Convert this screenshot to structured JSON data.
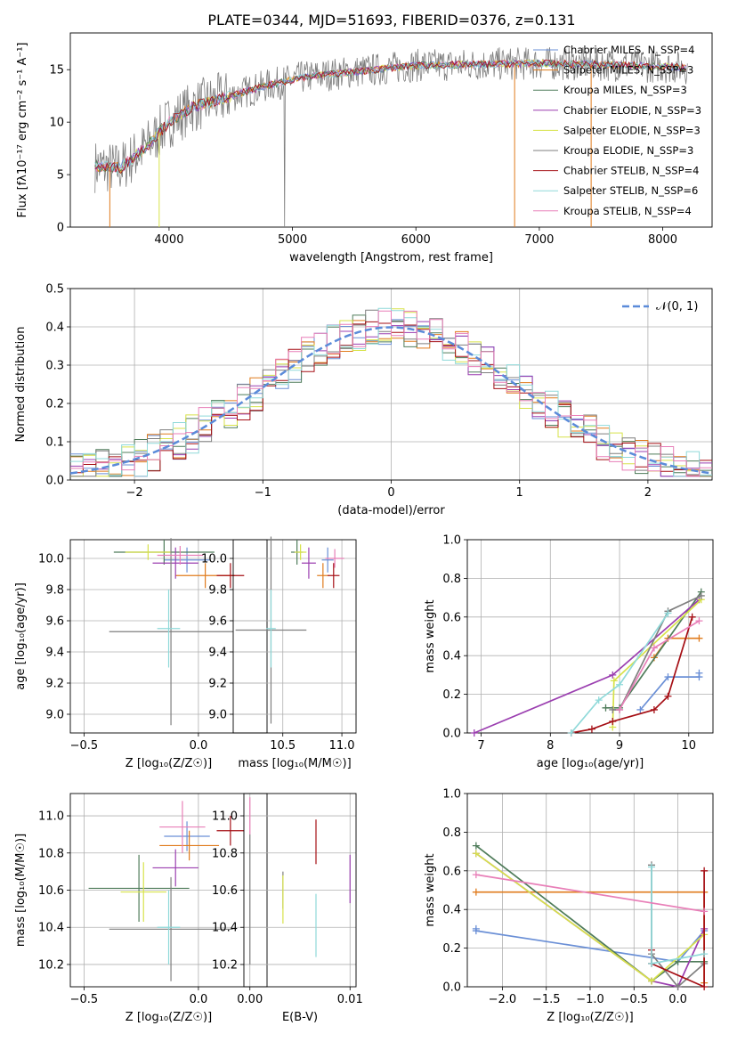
{
  "title": "PLATE=0344, MJD=51693, FIBERID=0376, z=0.131",
  "colors": [
    "#6a8fd6",
    "#e07b1c",
    "#4f7c5a",
    "#9b3fb0",
    "#d7e24a",
    "#7f7f7f",
    "#a50f15",
    "#8fd9d9",
    "#e87fb8"
  ],
  "chart_data": [
    {
      "type": "line",
      "name": "spectrum",
      "xlabel": "wavelength [Angstrom, rest frame]",
      "ylabel": "Flux [fλ10⁻¹⁷ erg cm⁻² s⁻¹ A⁻¹]",
      "xlim": [
        3200,
        8400
      ],
      "ylim": [
        0,
        18.5
      ],
      "xticks": [
        "4000",
        "5000",
        "6000",
        "7000",
        "8000"
      ],
      "yticks": [
        "0",
        "5",
        "10",
        "15"
      ],
      "legend": [
        "Chabrier MILES, N_SSP=4",
        "Salpeter MILES, N_SSP=3",
        "Kroupa MILES, N_SSP=3",
        "Chabrier ELODIE, N_SSP=3",
        "Salpeter ELODIE, N_SSP=3",
        "Kroupa ELODIE, N_SSP=3",
        "Chabrier STELIB, N_SSP=4",
        "Salpeter STELIB, N_SSP=6",
        "Kroupa STELIB, N_SSP=4"
      ],
      "legend_placement": "upper-right",
      "continuum_x": [
        3400,
        3600,
        3800,
        4000,
        4200,
        4500,
        4800,
        5100,
        5500,
        6000,
        6500,
        7000,
        7500,
        8000,
        8200
      ],
      "continuum_y": [
        5.8,
        5.6,
        7.5,
        10.0,
        11.5,
        12.5,
        13.5,
        14.3,
        14.8,
        15.4,
        15.5,
        15.6,
        15.5,
        15.3,
        15.2
      ],
      "grid": false
    },
    {
      "type": "histogram",
      "name": "residuals",
      "xlabel": "(data-model)/error",
      "ylabel": "Normed distribution",
      "xlim": [
        -2.5,
        2.5
      ],
      "ylim": [
        0,
        0.5
      ],
      "xticks": [
        "−2",
        "−1",
        "0",
        "1",
        "2"
      ],
      "yticks": [
        "0.0",
        "0.1",
        "0.2",
        "0.3",
        "0.4",
        "0.5"
      ],
      "legend": [
        "𝒩(0, 1)"
      ],
      "legend_placement": "upper-right",
      "bin_width": 0.1,
      "grid": true
    },
    {
      "type": "scatter",
      "name": "Z vs age",
      "xlabel": "Z [log₁₀(Z/Z☉)]",
      "ylabel": "age  [log₁₀(age/yr)]",
      "xlim": [
        -0.56,
        0.3
      ],
      "ylim": [
        8.88,
        10.12
      ],
      "xticks": [
        "−0.5",
        "0.0"
      ],
      "yticks": [
        "9.0",
        "9.2",
        "9.4",
        "9.6",
        "9.8",
        "10.0"
      ],
      "points": [
        {
          "x": -0.05,
          "y": 9.99,
          "xe": 0.1,
          "ye": 0.08,
          "c": 0
        },
        {
          "x": 0.03,
          "y": 9.89,
          "xe": 0.13,
          "ye": 0.08,
          "c": 1
        },
        {
          "x": -0.15,
          "y": 10.04,
          "xe": 0.22,
          "ye": 0.08,
          "c": 2
        },
        {
          "x": -0.1,
          "y": 9.97,
          "xe": 0.1,
          "ye": 0.1,
          "c": 3
        },
        {
          "x": -0.22,
          "y": 10.04,
          "xe": 0.1,
          "ye": 0.05,
          "c": 4
        },
        {
          "x": -0.12,
          "y": 9.53,
          "xe": 0.27,
          "ye": 0.6,
          "c": 5
        },
        {
          "x": 0.14,
          "y": 9.89,
          "xe": 0.06,
          "ye": 0.08,
          "c": 6
        },
        {
          "x": -0.13,
          "y": 9.55,
          "xe": 0.05,
          "ye": 0.25,
          "c": 7
        },
        {
          "x": -0.08,
          "y": 10.02,
          "xe": 0.1,
          "ye": 0.06,
          "c": 8
        }
      ],
      "grid": true
    },
    {
      "type": "scatter",
      "name": "mass vs age",
      "xlabel": "mass [log₁₀(M/M☉)]",
      "ylabel": "",
      "xlim": [
        10.08,
        11.12
      ],
      "ylim": [
        8.88,
        10.12
      ],
      "xticks": [
        "10.5",
        "11.0"
      ],
      "yticks": [
        "9.0",
        "9.2",
        "9.4",
        "9.6",
        "9.8",
        "10.0"
      ],
      "points": [
        {
          "x": 10.88,
          "y": 9.99,
          "xe": 0.05,
          "ye": 0.08,
          "c": 0
        },
        {
          "x": 10.84,
          "y": 9.89,
          "xe": 0.05,
          "ye": 0.08,
          "c": 1
        },
        {
          "x": 10.62,
          "y": 10.04,
          "xe": 0.05,
          "ye": 0.08,
          "c": 2
        },
        {
          "x": 10.72,
          "y": 9.97,
          "xe": 0.06,
          "ye": 0.1,
          "c": 3
        },
        {
          "x": 10.65,
          "y": 10.04,
          "xe": 0.05,
          "ye": 0.05,
          "c": 4
        },
        {
          "x": 10.4,
          "y": 9.54,
          "xe": 0.3,
          "ye": 0.6,
          "c": 5
        },
        {
          "x": 10.93,
          "y": 9.89,
          "xe": 0.05,
          "ye": 0.08,
          "c": 6
        },
        {
          "x": 10.4,
          "y": 9.55,
          "xe": 0.04,
          "ye": 0.25,
          "c": 7
        },
        {
          "x": 10.94,
          "y": 10.0,
          "xe": 0.08,
          "ye": 0.06,
          "c": 8
        }
      ],
      "grid": true
    },
    {
      "type": "line",
      "name": "age mass weight",
      "xlabel": "age  [log₁₀(age/yr)]",
      "ylabel": "mass weight",
      "xlim": [
        6.8,
        10.35
      ],
      "ylim": [
        0,
        1.0
      ],
      "xticks": [
        "7",
        "8",
        "9",
        "10"
      ],
      "yticks": [
        "0.0",
        "0.2",
        "0.4",
        "0.6",
        "0.8",
        "1.0"
      ],
      "series": [
        {
          "c": 0,
          "x": [
            9.3,
            9.7,
            10.15,
            10.15
          ],
          "y": [
            0.12,
            0.29,
            0.29,
            0.31
          ]
        },
        {
          "c": 1,
          "x": [
            9.5,
            9.7,
            10.15
          ],
          "y": [
            0.39,
            0.49,
            0.49
          ]
        },
        {
          "c": 2,
          "x": [
            8.8,
            9.0,
            10.18
          ],
          "y": [
            0.13,
            0.13,
            0.73
          ]
        },
        {
          "c": 3,
          "x": [
            6.9,
            8.9,
            10.15
          ],
          "y": [
            0.0,
            0.3,
            0.69
          ]
        },
        {
          "c": 4,
          "x": [
            8.9,
            8.92,
            10.18
          ],
          "y": [
            0.03,
            0.27,
            0.69
          ]
        },
        {
          "c": 5,
          "x": [
            8.9,
            9.0,
            9.7,
            10.18
          ],
          "y": [
            0.12,
            0.12,
            0.63,
            0.71
          ]
        },
        {
          "c": 6,
          "x": [
            8.3,
            8.6,
            8.9,
            9.5,
            9.7,
            10.05
          ],
          "y": [
            0.0,
            0.02,
            0.06,
            0.12,
            0.19,
            0.6
          ]
        },
        {
          "c": 7,
          "x": [
            8.3,
            8.7,
            9.0,
            9.7
          ],
          "y": [
            0.0,
            0.17,
            0.25,
            0.62
          ]
        },
        {
          "c": 8,
          "x": [
            9.0,
            9.5,
            10.15
          ],
          "y": [
            0.12,
            0.44,
            0.58
          ]
        }
      ],
      "grid": true
    },
    {
      "type": "scatter",
      "name": "Z vs mass",
      "xlabel": "Z [log₁₀(Z/Z☉)]",
      "ylabel": "mass [log₁₀(M/M☉)]",
      "xlim": [
        -0.56,
        0.3
      ],
      "ylim": [
        10.08,
        11.12
      ],
      "xticks": [
        "−0.5",
        "0.0"
      ],
      "yticks": [
        "10.2",
        "10.4",
        "10.6",
        "10.8",
        "11.0"
      ],
      "points": [
        {
          "x": -0.05,
          "y": 10.89,
          "xe": 0.1,
          "ye": 0.08,
          "c": 0
        },
        {
          "x": -0.04,
          "y": 10.84,
          "xe": 0.13,
          "ye": 0.08,
          "c": 1
        },
        {
          "x": -0.26,
          "y": 10.61,
          "xe": 0.22,
          "ye": 0.18,
          "c": 2
        },
        {
          "x": -0.1,
          "y": 10.72,
          "xe": 0.1,
          "ye": 0.1,
          "c": 3
        },
        {
          "x": -0.24,
          "y": 10.59,
          "xe": 0.1,
          "ye": 0.16,
          "c": 4
        },
        {
          "x": -0.12,
          "y": 10.39,
          "xe": 0.27,
          "ye": 0.28,
          "c": 5
        },
        {
          "x": 0.14,
          "y": 10.92,
          "xe": 0.06,
          "ye": 0.08,
          "c": 6
        },
        {
          "x": -0.13,
          "y": 10.4,
          "xe": 0.05,
          "ye": 0.2,
          "c": 7
        },
        {
          "x": -0.07,
          "y": 10.94,
          "xe": 0.1,
          "ye": 0.14,
          "c": 8
        }
      ],
      "grid": true
    },
    {
      "type": "scatter",
      "name": "E(B-V) vs mass",
      "xlabel": "E(B-V)",
      "ylabel": "",
      "xlim": [
        -0.0006,
        0.0106
      ],
      "ylim": [
        10.08,
        11.12
      ],
      "xticks": [
        "0.00",
        "0.01"
      ],
      "yticks": [
        "10.2",
        "10.4",
        "10.6",
        "10.8",
        "11.0"
      ],
      "points": [
        {
          "x": 0.0,
          "y": 10.55,
          "xe": 0,
          "ye": 0.35,
          "c": 5
        },
        {
          "x": 0.0,
          "y": 11.0,
          "xe": 0,
          "ye": 0.1,
          "c": 8
        },
        {
          "x": 0.0033,
          "y": 10.6,
          "xe": 0,
          "ye": 0.1,
          "c": 5
        },
        {
          "x": 0.0033,
          "y": 10.55,
          "xe": 0,
          "ye": 0.13,
          "c": 4
        },
        {
          "x": 0.0066,
          "y": 10.86,
          "xe": 0,
          "ye": 0.12,
          "c": 6
        },
        {
          "x": 0.0066,
          "y": 10.41,
          "xe": 0,
          "ye": 0.17,
          "c": 7
        },
        {
          "x": 0.01,
          "y": 10.66,
          "xe": 0,
          "ye": 0.13,
          "c": 3
        }
      ],
      "grid": true
    },
    {
      "type": "line",
      "name": "Z mass weight",
      "xlabel": "Z [log₁₀(Z/Z☉)]",
      "ylabel": "mass weight",
      "xlim": [
        -2.4,
        0.4
      ],
      "ylim": [
        0,
        1.0
      ],
      "xticks": [
        "−2.0",
        "−1.5",
        "−1.0",
        "−0.5",
        "0.0"
      ],
      "yticks": [
        "0.0",
        "0.2",
        "0.4",
        "0.6",
        "0.8",
        "1.0"
      ],
      "series": [
        {
          "c": 0,
          "x": [
            -2.3,
            -2.3,
            0.0,
            0.3
          ],
          "y": [
            0.3,
            0.29,
            0.13,
            0.29
          ]
        },
        {
          "c": 1,
          "x": [
            -2.3,
            0.3,
            0.3,
            0.3
          ],
          "y": [
            0.49,
            0.49,
            0.02,
            0.49
          ]
        },
        {
          "c": 2,
          "x": [
            -2.3,
            -0.3,
            0.0,
            0.3
          ],
          "y": [
            0.73,
            0.03,
            0.13,
            0.13
          ]
        },
        {
          "c": 3,
          "x": [
            -2.3,
            -0.3,
            0.0,
            0.3
          ],
          "y": [
            0.69,
            0.03,
            0.0,
            0.3
          ]
        },
        {
          "c": 4,
          "x": [
            -2.3,
            -0.3,
            0.3
          ],
          "y": [
            0.69,
            0.03,
            0.27
          ]
        },
        {
          "c": 5,
          "x": [
            -0.3,
            -0.3,
            0.0,
            0.3
          ],
          "y": [
            0.63,
            0.17,
            0.0,
            0.12
          ]
        },
        {
          "c": 6,
          "x": [
            -0.3,
            -0.3,
            0.3,
            0.3
          ],
          "y": [
            0.19,
            0.12,
            0.0,
            0.6
          ]
        },
        {
          "c": 7,
          "x": [
            -0.3,
            -0.3,
            0.3
          ],
          "y": [
            0.62,
            0.12,
            0.17
          ]
        },
        {
          "c": 8,
          "x": [
            -2.3,
            0.3
          ],
          "y": [
            0.58,
            0.39
          ]
        }
      ],
      "grid": true
    }
  ]
}
